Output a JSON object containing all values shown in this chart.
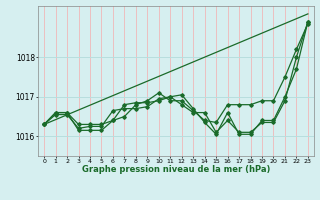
{
  "title": "Graphe pression niveau de la mer (hPa)",
  "bg_color": "#d6eff0",
  "vgrid_color": "#f0b8b8",
  "hgrid_color": "#b8dede",
  "line_color": "#1a6b2a",
  "xlim": [
    -0.5,
    23.5
  ],
  "ylim": [
    1015.5,
    1019.3
  ],
  "yticks": [
    1016,
    1017,
    1018
  ],
  "xticks": [
    0,
    1,
    2,
    3,
    4,
    5,
    6,
    7,
    8,
    9,
    10,
    11,
    12,
    13,
    14,
    15,
    16,
    17,
    18,
    19,
    20,
    21,
    22,
    23
  ],
  "series": [
    {
      "x": [
        0,
        1,
        2,
        3,
        4,
        5,
        6,
        7,
        8,
        9,
        10,
        11,
        12,
        13,
        14,
        15,
        16,
        17,
        18,
        19,
        20,
        21,
        22,
        23
      ],
      "y": [
        1016.3,
        1016.6,
        1016.6,
        1016.3,
        1016.3,
        1016.3,
        1016.4,
        1016.5,
        1016.8,
        1016.9,
        1017.1,
        1016.9,
        1016.9,
        1016.65,
        1016.4,
        1016.35,
        1016.8,
        1016.8,
        1016.8,
        1016.9,
        1016.9,
        1017.5,
        1018.2,
        1018.85
      ],
      "marker": "D",
      "markersize": 1.8,
      "linewidth": 0.9
    },
    {
      "x": [
        0,
        1,
        2,
        3,
        4,
        5,
        6,
        7,
        8,
        9,
        10,
        11,
        12,
        13,
        14,
        15,
        16,
        17,
        18,
        19,
        20,
        21,
        22,
        23
      ],
      "y": [
        1016.3,
        1016.6,
        1016.6,
        1016.15,
        1016.15,
        1016.15,
        1016.4,
        1016.8,
        1016.85,
        1016.85,
        1016.9,
        1017.0,
        1017.05,
        1016.7,
        1016.35,
        1016.05,
        1016.6,
        1016.05,
        1016.05,
        1016.4,
        1016.4,
        1017.0,
        1017.7,
        1018.9
      ],
      "marker": "D",
      "markersize": 1.8,
      "linewidth": 0.9
    },
    {
      "x": [
        0,
        1,
        2,
        3,
        4,
        5,
        6,
        7,
        8,
        9,
        10,
        11,
        12,
        13,
        14,
        15,
        16,
        17,
        18,
        19,
        20,
        21,
        22,
        23
      ],
      "y": [
        1016.3,
        1016.55,
        1016.55,
        1016.2,
        1016.25,
        1016.25,
        1016.65,
        1016.7,
        1016.7,
        1016.75,
        1016.95,
        1017.0,
        1016.8,
        1016.6,
        1016.6,
        1016.1,
        1016.4,
        1016.1,
        1016.1,
        1016.35,
        1016.35,
        1016.9,
        1018.0,
        1018.9
      ],
      "marker": "D",
      "markersize": 1.8,
      "linewidth": 0.9
    },
    {
      "x": [
        0,
        23
      ],
      "y": [
        1016.3,
        1019.1
      ],
      "marker": null,
      "markersize": 0,
      "linewidth": 0.9
    }
  ]
}
